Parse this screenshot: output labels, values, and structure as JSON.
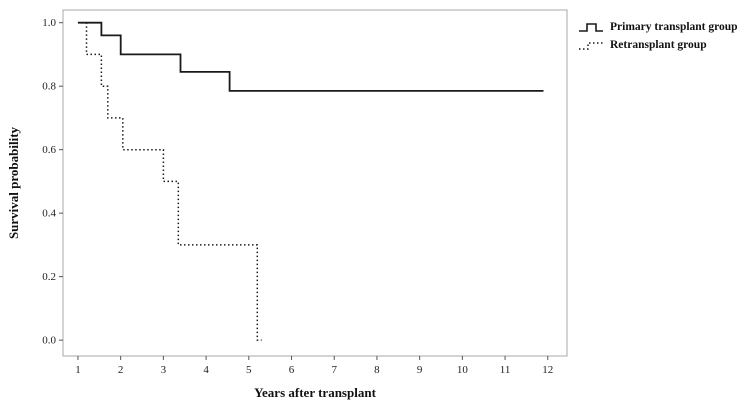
{
  "figure": {
    "kind": "kaplan-meier-survival-plot"
  },
  "chart_data": {
    "type": "line",
    "subtype": "step-survival-curve",
    "title": "",
    "xlabel": "Years after transplant",
    "ylabel": "Survival probability",
    "xlim": [
      0.65,
      12.45
    ],
    "ylim": [
      -0.05,
      1.04
    ],
    "xticks": [
      1,
      2,
      3,
      4,
      5,
      6,
      7,
      8,
      9,
      10,
      11,
      12
    ],
    "ytick_labels": [
      "0.0",
      "0.2",
      "0.4",
      "0.6",
      "0.8",
      "1.0"
    ],
    "grid": false,
    "legend_position": "outside-top-right",
    "frame_color": "#a9a9a9",
    "line_color": "#1a1a1a",
    "series": [
      {
        "name": "Primary transplant group",
        "style": "solid",
        "color": "#1a1a1a",
        "points": [
          [
            1.0,
            1.0
          ],
          [
            1.55,
            1.0
          ],
          [
            1.55,
            0.96
          ],
          [
            2.0,
            0.96
          ],
          [
            2.0,
            0.9
          ],
          [
            3.4,
            0.9
          ],
          [
            3.4,
            0.845
          ],
          [
            4.55,
            0.845
          ],
          [
            4.55,
            0.785
          ],
          [
            11.9,
            0.785
          ]
        ]
      },
      {
        "name": "Retransplant group",
        "style": "dotted",
        "color": "#1a1a1a",
        "points": [
          [
            1.1,
            1.0
          ],
          [
            1.2,
            1.0
          ],
          [
            1.2,
            0.9
          ],
          [
            1.55,
            0.9
          ],
          [
            1.55,
            0.8
          ],
          [
            1.7,
            0.8
          ],
          [
            1.7,
            0.7
          ],
          [
            2.05,
            0.7
          ],
          [
            2.05,
            0.6
          ],
          [
            3.0,
            0.6
          ],
          [
            3.0,
            0.5
          ],
          [
            3.35,
            0.5
          ],
          [
            3.35,
            0.3
          ],
          [
            5.2,
            0.3
          ],
          [
            5.2,
            0.0
          ],
          [
            5.3,
            0.0
          ]
        ]
      }
    ]
  }
}
